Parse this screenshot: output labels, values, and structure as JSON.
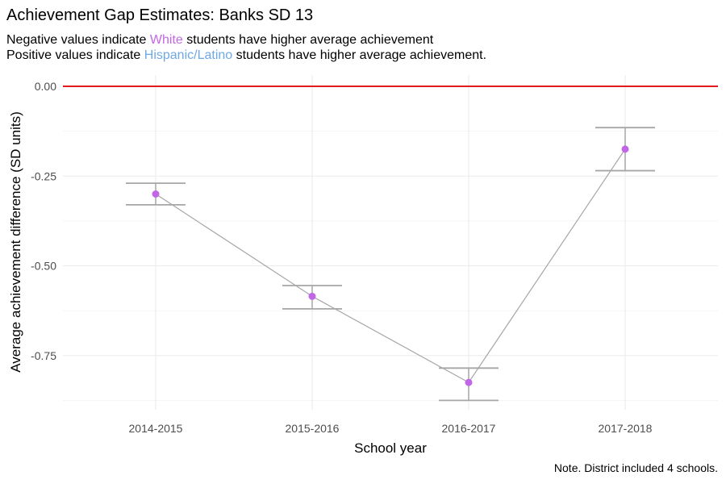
{
  "title": "Achievement Gap Estimates: Banks SD 13",
  "subtitle_line1": {
    "before": "Negative values indicate ",
    "highlight": "White",
    "after": " students have higher average achievement"
  },
  "subtitle_line2": {
    "before": "Positive values indicate ",
    "highlight": "Hispanic/Latino",
    "after": " students have higher average achievement."
  },
  "caption": "Note. District included 4 schools.",
  "colors": {
    "white_group": "#c266e8",
    "hispanic_group": "#6fa8e6",
    "reference_line": "#e31a1c",
    "point": "#c266e8",
    "line_and_errorbar": "#a6a6a6",
    "grid": "#ebebeb"
  },
  "chart_data": {
    "type": "line",
    "xlabel": "School year",
    "ylabel": "Average achievement difference (SD units)",
    "categories": [
      "2014-2015",
      "2015-2016",
      "2016-2017",
      "2017-2018"
    ],
    "series": [
      {
        "values": [
          -0.3,
          -0.585,
          -0.825,
          -0.175
        ],
        "lower": [
          -0.33,
          -0.62,
          -0.875,
          -0.235
        ],
        "upper": [
          -0.27,
          -0.555,
          -0.785,
          -0.115
        ]
      }
    ],
    "reference_line_y": 0.0,
    "yticks": [
      0.0,
      -0.25,
      -0.5,
      -0.75
    ],
    "ytick_labels": [
      "0.00",
      "-0.25",
      "-0.50",
      "-0.75"
    ],
    "ylim": [
      -0.875,
      0.0
    ],
    "grid": true
  }
}
